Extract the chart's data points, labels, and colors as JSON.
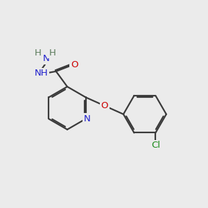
{
  "background_color": "#ebebeb",
  "bond_color": "#3a3a3a",
  "atom_colors": {
    "N": "#2020cc",
    "O": "#cc0000",
    "Cl": "#1a8a1a",
    "C": "#3a3a3a",
    "H": "#5a7a5a"
  },
  "lw": 1.6,
  "fontsize": 9.5
}
